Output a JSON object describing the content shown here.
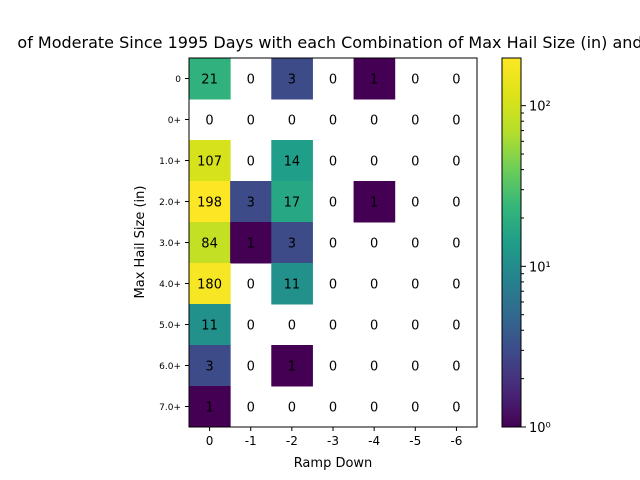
{
  "chart_data": {
    "type": "heatmap",
    "title": "of Moderate Since 1995 Days with each Combination of Max Hail Size (in) and",
    "xlabel": "Ramp Down",
    "ylabel": "Max Hail Size (in)",
    "x_categories": [
      "0",
      "-1",
      "-2",
      "-3",
      "-4",
      "-5",
      "-6"
    ],
    "y_categories": [
      "0",
      "0+",
      "1.0+",
      "2.0+",
      "3.0+",
      "4.0+",
      "5.0+",
      "6.0+",
      "7.0+"
    ],
    "values": [
      [
        21,
        0,
        3,
        0,
        1,
        0,
        0
      ],
      [
        0,
        0,
        0,
        0,
        0,
        0,
        0
      ],
      [
        107,
        0,
        14,
        0,
        0,
        0,
        0
      ],
      [
        198,
        3,
        17,
        0,
        1,
        0,
        0
      ],
      [
        84,
        1,
        3,
        0,
        0,
        0,
        0
      ],
      [
        180,
        0,
        11,
        0,
        0,
        0,
        0
      ],
      [
        11,
        0,
        0,
        0,
        0,
        0,
        0
      ],
      [
        3,
        0,
        1,
        0,
        0,
        0,
        0
      ],
      [
        1,
        0,
        0,
        0,
        0,
        0,
        0
      ]
    ],
    "colorbar": {
      "scale": "log",
      "colormap": "viridis",
      "range": [
        1,
        198
      ],
      "tick_labels": [
        "10⁰",
        "10¹",
        "10²"
      ],
      "tick_values": [
        1,
        10,
        100
      ]
    },
    "zero_cells": "blank (white)",
    "grid": false
  }
}
